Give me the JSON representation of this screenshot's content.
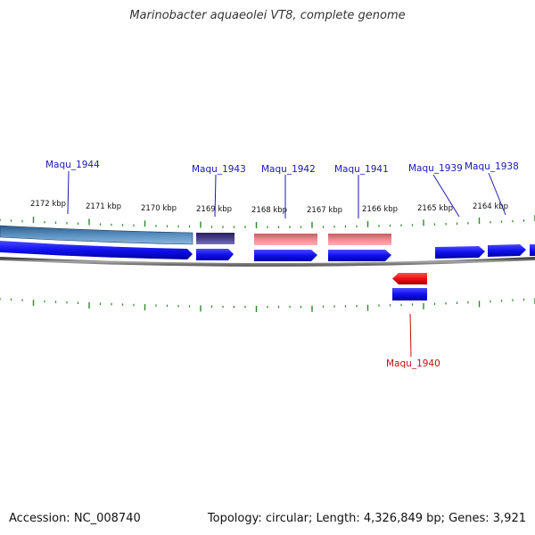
{
  "title": "Marinobacter aquaeolei VT8, complete genome",
  "footer": {
    "accession": "Accession: NC_008740",
    "summary": "Topology: circular; Length: 4,326,849 bp; Genes: 3,921"
  },
  "colors": {
    "forward_gene": "#1010ee",
    "reverse_gene": "#ee1010",
    "feature_steel": "#4a7fb0",
    "feature_purple": "#4a3f8c",
    "feature_pink": "#ee8a8e",
    "tick": "#2a8a2a",
    "label_blue": "#1a1ab0",
    "label_red": "#c01010",
    "backbone": "#888888"
  },
  "scale_labels": [
    "2172 kbp",
    "2171 kbp",
    "2170 kbp",
    "2169 kbp",
    "2168 kbp",
    "2167 kbp",
    "2166 kbp",
    "2165 kbp",
    "2164 kbp"
  ],
  "gene_labels": [
    {
      "id": "maqu-1944",
      "text": "Maqu_1944",
      "strand": "forward"
    },
    {
      "id": "maqu-1943",
      "text": "Maqu_1943",
      "strand": "forward"
    },
    {
      "id": "maqu-1942",
      "text": "Maqu_1942",
      "strand": "forward"
    },
    {
      "id": "maqu-1941",
      "text": "Maqu_1941",
      "strand": "forward"
    },
    {
      "id": "maqu-1939",
      "text": "Maqu_1939",
      "strand": "forward"
    },
    {
      "id": "maqu-1938",
      "text": "Maqu_1938",
      "strand": "forward"
    },
    {
      "id": "maqu-1940",
      "text": "Maqu_1940",
      "strand": "reverse"
    }
  ]
}
